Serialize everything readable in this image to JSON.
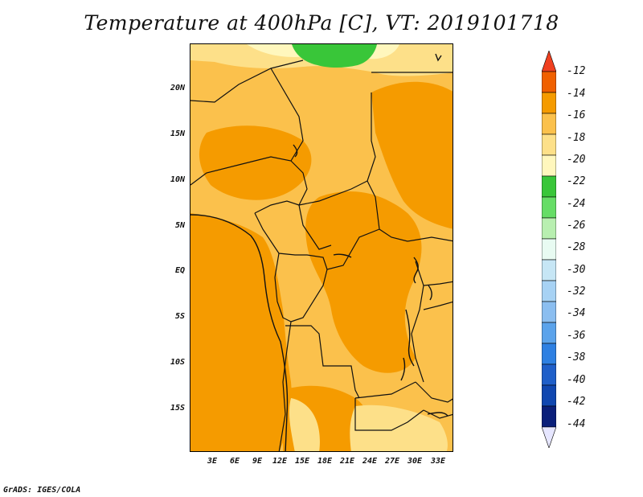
{
  "title": "Temperature at 400hPa [C], VT: 2019101718",
  "map": {
    "lat_labels": [
      "20N",
      "15N",
      "10N",
      "5N",
      "EQ",
      "5S",
      "10S",
      "15S"
    ],
    "lon_labels": [
      "3E",
      "6E",
      "9E",
      "12E",
      "15E",
      "18E",
      "21E",
      "24E",
      "27E",
      "30E",
      "33E"
    ],
    "lat_range": [
      -19.5,
      24.5
    ],
    "lon_range": [
      0.5,
      35.5
    ]
  },
  "legend": {
    "labels": [
      "-12",
      "-14",
      "-16",
      "-18",
      "-20",
      "-22",
      "-24",
      "-26",
      "-28",
      "-30",
      "-32",
      "-34",
      "-36",
      "-38",
      "-40",
      "-42",
      "-44"
    ],
    "colors": [
      "#f04020",
      "#f06000",
      "#f59b00",
      "#fbc14c",
      "#fde089",
      "#fff7bd",
      "#39c639",
      "#66dd66",
      "#b8efb0",
      "#e8fbf2",
      "#c6e6f5",
      "#a7d2f4",
      "#8bbef0",
      "#5ba3eb",
      "#2e80e2",
      "#1f5fc9",
      "#1047b0",
      "#0a1f7a",
      "#e6e6ff"
    ]
  },
  "footer": "GrADS: IGES/COLA"
}
